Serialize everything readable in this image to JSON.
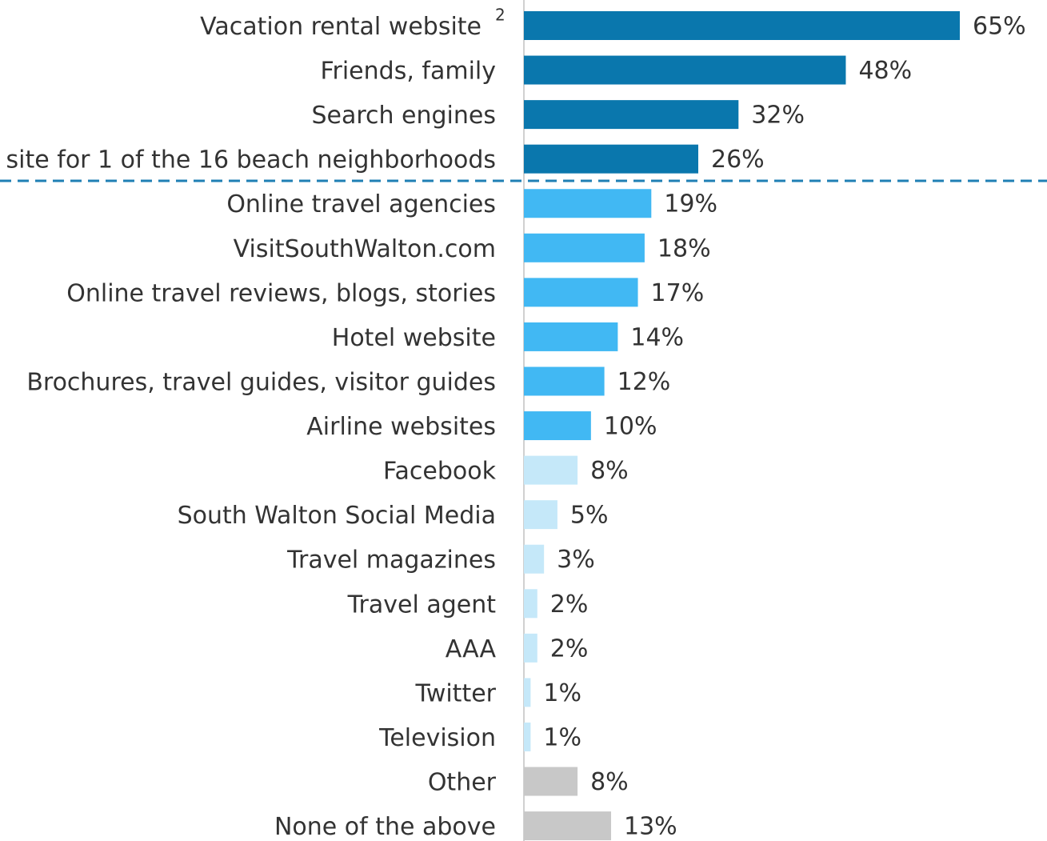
{
  "chart_data": {
    "type": "bar",
    "orientation": "horizontal",
    "categories": [
      "Vacation rental website",
      "Friends, family",
      "Search engines",
      "site for 1 of the 16 beach neighborhoods",
      "Online travel agencies",
      "VisitSouthWalton.com",
      "Online travel reviews, blogs, stories",
      "Hotel website",
      "Brochures, travel guides, visitor guides",
      "Airline websites",
      "Facebook",
      "South Walton Social Media",
      "Travel magazines",
      "Travel agent",
      "AAA",
      "Twitter",
      "Television",
      "Other",
      "None of the above"
    ],
    "category_superscripts": [
      "2",
      null,
      null,
      null,
      null,
      null,
      null,
      null,
      null,
      null,
      null,
      null,
      null,
      null,
      null,
      null,
      null,
      null,
      null
    ],
    "values": [
      65,
      48,
      32,
      26,
      19,
      18,
      17,
      14,
      12,
      10,
      8,
      5,
      3,
      2,
      2,
      1,
      1,
      8,
      13
    ],
    "value_labels": [
      "65%",
      "48%",
      "32%",
      "26%",
      "19%",
      "18%",
      "17%",
      "14%",
      "12%",
      "10%",
      "8%",
      "5%",
      "3%",
      "2%",
      "2%",
      "1%",
      "1%",
      "8%",
      "13%"
    ],
    "colors": [
      "#0a77ad",
      "#0a77ad",
      "#0a77ad",
      "#0a77ad",
      "#41b8f3",
      "#41b8f3",
      "#41b8f3",
      "#41b8f3",
      "#41b8f3",
      "#41b8f3",
      "#c5e8f9",
      "#c5e8f9",
      "#c5e8f9",
      "#c5e8f9",
      "#c5e8f9",
      "#c5e8f9",
      "#c5e8f9",
      "#c8c8c8",
      "#c8c8c8"
    ],
    "xlim": [
      0,
      65
    ]
  }
}
